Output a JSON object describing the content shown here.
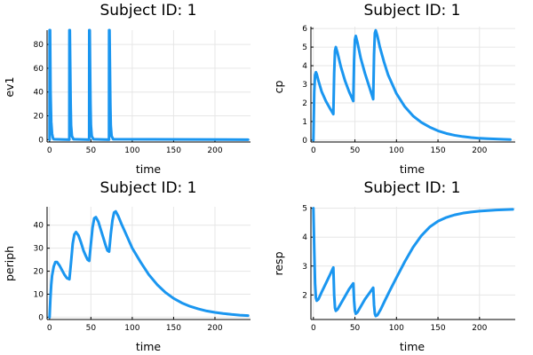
{
  "series_color": "#1a96f0",
  "chart_data": [
    {
      "type": "line",
      "title": "Subject ID: 1",
      "xlabel": "time",
      "ylabel": "ev1",
      "xlim": [
        -3,
        243
      ],
      "ylim": [
        -2,
        92
      ],
      "xticks": [
        0,
        50,
        100,
        150,
        200
      ],
      "yticks": [
        0,
        20,
        40,
        60,
        80
      ],
      "grid": true,
      "legend": "none",
      "series": [
        {
          "x": [
            0,
            0.05,
            0.6,
            1.2,
            2,
            3,
            4,
            5,
            23.9,
            24,
            24.5,
            25,
            25.5,
            26,
            27,
            29,
            47.9,
            48,
            48.5,
            49,
            49.5,
            50,
            51,
            53,
            71.9,
            72,
            72.5,
            73,
            73.5,
            74,
            75,
            77,
            240
          ],
          "y": [
            0,
            92,
            92,
            40,
            15,
            5,
            1.5,
            0.3,
            0,
            92,
            92,
            60,
            30,
            12,
            3,
            0.3,
            0,
            92,
            92,
            60,
            30,
            12,
            3,
            0.3,
            0,
            92,
            92,
            60,
            30,
            12,
            3,
            0.3,
            0
          ]
        }
      ]
    },
    {
      "type": "line",
      "title": "Subject ID: 1",
      "xlabel": "time",
      "ylabel": "cp",
      "xlim": [
        -3,
        243
      ],
      "ylim": [
        -0.1,
        6.1
      ],
      "xticks": [
        0,
        50,
        100,
        150,
        200
      ],
      "yticks": [
        0,
        1,
        2,
        3,
        4,
        5,
        6
      ],
      "grid": true,
      "legend": "none",
      "series": [
        {
          "x": [
            0,
            1,
            2,
            3,
            4,
            6,
            10,
            15,
            20,
            24,
            25,
            26,
            27,
            29,
            33,
            38,
            43,
            48,
            49,
            50,
            51,
            53,
            57,
            62,
            67,
            72,
            73,
            74,
            75,
            77,
            80,
            85,
            90,
            100,
            110,
            120,
            130,
            140,
            150,
            160,
            170,
            180,
            190,
            200,
            210,
            220,
            230,
            237
          ],
          "y": [
            0,
            2.6,
            3.5,
            3.65,
            3.55,
            3.2,
            2.6,
            2.1,
            1.7,
            1.4,
            3.6,
            4.8,
            5.0,
            4.7,
            3.95,
            3.2,
            2.6,
            2.1,
            4.3,
            5.4,
            5.6,
            5.25,
            4.4,
            3.6,
            2.9,
            2.2,
            4.6,
            5.75,
            5.9,
            5.6,
            5.0,
            4.2,
            3.5,
            2.5,
            1.8,
            1.3,
            0.95,
            0.7,
            0.5,
            0.36,
            0.26,
            0.19,
            0.14,
            0.1,
            0.08,
            0.06,
            0.04,
            0.03
          ]
        }
      ]
    },
    {
      "type": "line",
      "title": "Subject ID: 1",
      "xlabel": "time",
      "ylabel": "periph",
      "xlim": [
        -3,
        243
      ],
      "ylim": [
        -1,
        48
      ],
      "xticks": [
        0,
        50,
        100,
        150,
        200
      ],
      "yticks": [
        0,
        10,
        20,
        30,
        40
      ],
      "grid": true,
      "legend": "none",
      "series": [
        {
          "x": [
            0,
            1,
            2,
            3,
            5,
            7,
            9,
            12,
            15,
            18,
            21,
            24,
            26,
            28,
            30,
            32,
            35,
            38,
            41,
            44,
            46,
            48,
            50,
            52,
            54,
            56,
            59,
            62,
            65,
            68,
            70,
            72,
            74,
            76,
            78,
            80,
            83,
            87,
            92,
            100,
            110,
            120,
            130,
            140,
            150,
            160,
            170,
            180,
            190,
            200,
            210,
            220,
            230,
            240
          ],
          "y": [
            0,
            8,
            14,
            18,
            22,
            24,
            24,
            22.5,
            20.5,
            18.5,
            17,
            16.5,
            24,
            32,
            36,
            37,
            35.5,
            32.5,
            29,
            26.5,
            25,
            24.5,
            32,
            39,
            43,
            43.5,
            41.5,
            38,
            34.5,
            31,
            29,
            28.5,
            36,
            42,
            45.5,
            46,
            44,
            40.5,
            36.5,
            30,
            24,
            18.5,
            14.2,
            10.8,
            8.2,
            6.2,
            4.7,
            3.6,
            2.7,
            2.1,
            1.6,
            1.2,
            0.9,
            0.7
          ]
        }
      ]
    },
    {
      "type": "line",
      "title": "Subject ID: 1",
      "xlabel": "time",
      "ylabel": "resp",
      "xlim": [
        -3,
        243
      ],
      "ylim": [
        1.15,
        5.05
      ],
      "xticks": [
        0,
        50,
        100,
        150,
        200
      ],
      "yticks": [
        2,
        3,
        4,
        5
      ],
      "grid": true,
      "legend": "none",
      "series": [
        {
          "x": [
            0,
            1,
            2,
            3,
            4,
            6,
            10,
            15,
            20,
            24,
            25,
            26,
            27,
            29,
            33,
            38,
            43,
            48,
            49,
            50,
            51,
            53,
            57,
            62,
            67,
            72,
            73,
            74,
            75,
            77,
            81,
            86,
            92,
            100,
            110,
            120,
            130,
            140,
            150,
            160,
            170,
            180,
            190,
            200,
            210,
            220,
            230,
            240
          ],
          "y": [
            5.0,
            3.6,
            2.4,
            1.9,
            1.8,
            1.85,
            2.1,
            2.4,
            2.7,
            2.95,
            2.0,
            1.55,
            1.45,
            1.5,
            1.7,
            1.95,
            2.2,
            2.4,
            1.8,
            1.45,
            1.35,
            1.4,
            1.6,
            1.85,
            2.05,
            2.25,
            1.65,
            1.35,
            1.27,
            1.3,
            1.5,
            1.8,
            2.15,
            2.6,
            3.15,
            3.65,
            4.05,
            4.35,
            4.55,
            4.68,
            4.77,
            4.83,
            4.87,
            4.9,
            4.92,
            4.94,
            4.95,
            4.96
          ]
        }
      ]
    }
  ]
}
